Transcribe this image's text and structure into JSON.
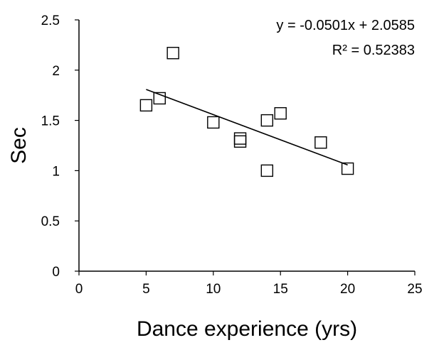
{
  "chart_data": {
    "type": "scatter",
    "xlabel": "Dance experience (yrs)",
    "ylabel": "Sec",
    "xlim": [
      0,
      25
    ],
    "ylim": [
      0,
      2.5
    ],
    "xticks": [
      "0",
      "5",
      "10",
      "15",
      "20",
      "25"
    ],
    "yticks": [
      "0",
      "0.5",
      "1",
      "1.5",
      "2",
      "2.5"
    ],
    "grid": false,
    "marker": "hollow-square",
    "points": [
      {
        "x": 5,
        "y": 1.65
      },
      {
        "x": 6,
        "y": 1.72
      },
      {
        "x": 7,
        "y": 2.17
      },
      {
        "x": 10,
        "y": 1.48
      },
      {
        "x": 12,
        "y": 1.32
      },
      {
        "x": 12,
        "y": 1.29
      },
      {
        "x": 14,
        "y": 1.5
      },
      {
        "x": 14,
        "y": 1.0
      },
      {
        "x": 15,
        "y": 1.57
      },
      {
        "x": 18,
        "y": 1.28
      },
      {
        "x": 20,
        "y": 1.02
      }
    ],
    "trendline": {
      "slope": -0.0501,
      "intercept": 2.0585,
      "x_from": 5,
      "x_to": 20
    },
    "annotations": {
      "equation": "y = -0.0501x + 2.0585",
      "r_squared": "R² = 0.52383"
    }
  }
}
